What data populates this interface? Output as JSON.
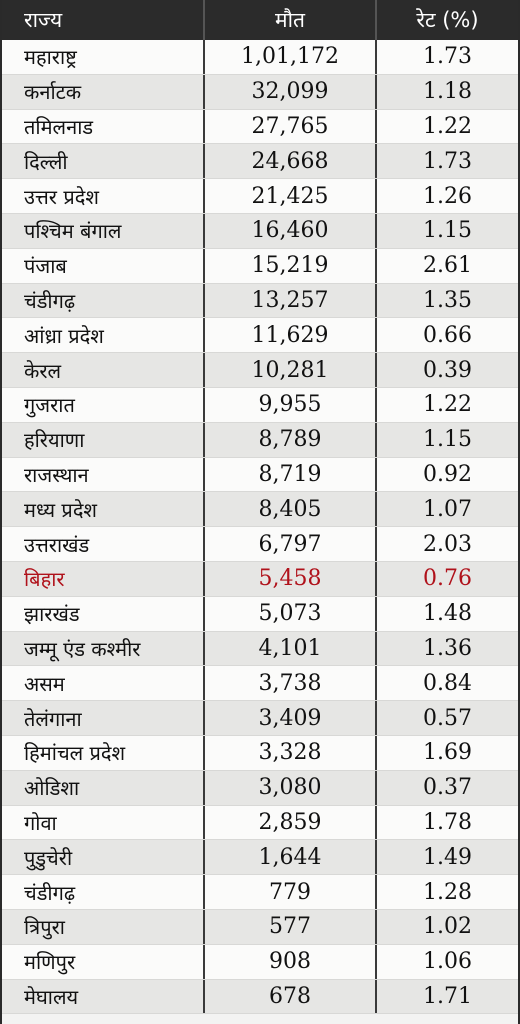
{
  "table": {
    "headers": {
      "state": "राज्य",
      "deaths": "मौत",
      "rate": "रेट (%)"
    },
    "highlight_color": "#b0121b",
    "rows": [
      {
        "state": "महाराष्ट्र",
        "deaths": "1,01,172",
        "rate": "1.73"
      },
      {
        "state": "कर्नाटक",
        "deaths": "32,099",
        "rate": "1.18"
      },
      {
        "state": "तमिलनाड",
        "deaths": "27,765",
        "rate": "1.22"
      },
      {
        "state": "दिल्ली",
        "deaths": "24,668",
        "rate": "1.73"
      },
      {
        "state": "उत्तर प्रदेश",
        "deaths": "21,425",
        "rate": "1.26"
      },
      {
        "state": "पश्चिम बंगाल",
        "deaths": "16,460",
        "rate": "1.15"
      },
      {
        "state": "पंजाब",
        "deaths": "15,219",
        "rate": "2.61"
      },
      {
        "state": "चंडीगढ़",
        "deaths": "13,257",
        "rate": "1.35"
      },
      {
        "state": "आंध्रा प्रदेश",
        "deaths": "11,629",
        "rate": "0.66"
      },
      {
        "state": "केरल",
        "deaths": "10,281",
        "rate": "0.39"
      },
      {
        "state": "गुजरात",
        "deaths": "9,955",
        "rate": "1.22"
      },
      {
        "state": "हरियाणा",
        "deaths": "8,789",
        "rate": "1.15"
      },
      {
        "state": "राजस्थान",
        "deaths": "8,719",
        "rate": "0.92"
      },
      {
        "state": "मध्य प्रदेश",
        "deaths": "8,405",
        "rate": "1.07"
      },
      {
        "state": "उत्तराखंड",
        "deaths": "6,797",
        "rate": "2.03"
      },
      {
        "state": "बिहार",
        "deaths": "5,458",
        "rate": "0.76",
        "highlight": true
      },
      {
        "state": "झारखंड",
        "deaths": "5,073",
        "rate": "1.48"
      },
      {
        "state": "जम्मू एंड कश्मीर",
        "deaths": "4,101",
        "rate": "1.36"
      },
      {
        "state": "असम",
        "deaths": "3,738",
        "rate": "0.84"
      },
      {
        "state": "तेलंगाना",
        "deaths": "3,409",
        "rate": "0.57"
      },
      {
        "state": "हिमांचल प्रदेश",
        "deaths": "3,328",
        "rate": "1.69"
      },
      {
        "state": "ओडिशा",
        "deaths": "3,080",
        "rate": "0.37"
      },
      {
        "state": "गोवा",
        "deaths": "2,859",
        "rate": "1.78"
      },
      {
        "state": "पुडुचेरी",
        "deaths": "1,644",
        "rate": "1.49"
      },
      {
        "state": "चंडीगढ़",
        "deaths": "779",
        "rate": "1.28"
      },
      {
        "state": "त्रिपुरा",
        "deaths": "577",
        "rate": "1.02"
      },
      {
        "state": "मणिपुर",
        "deaths": "908",
        "rate": "1.06"
      },
      {
        "state": "मेघालय",
        "deaths": "678",
        "rate": "1.71"
      }
    ]
  }
}
